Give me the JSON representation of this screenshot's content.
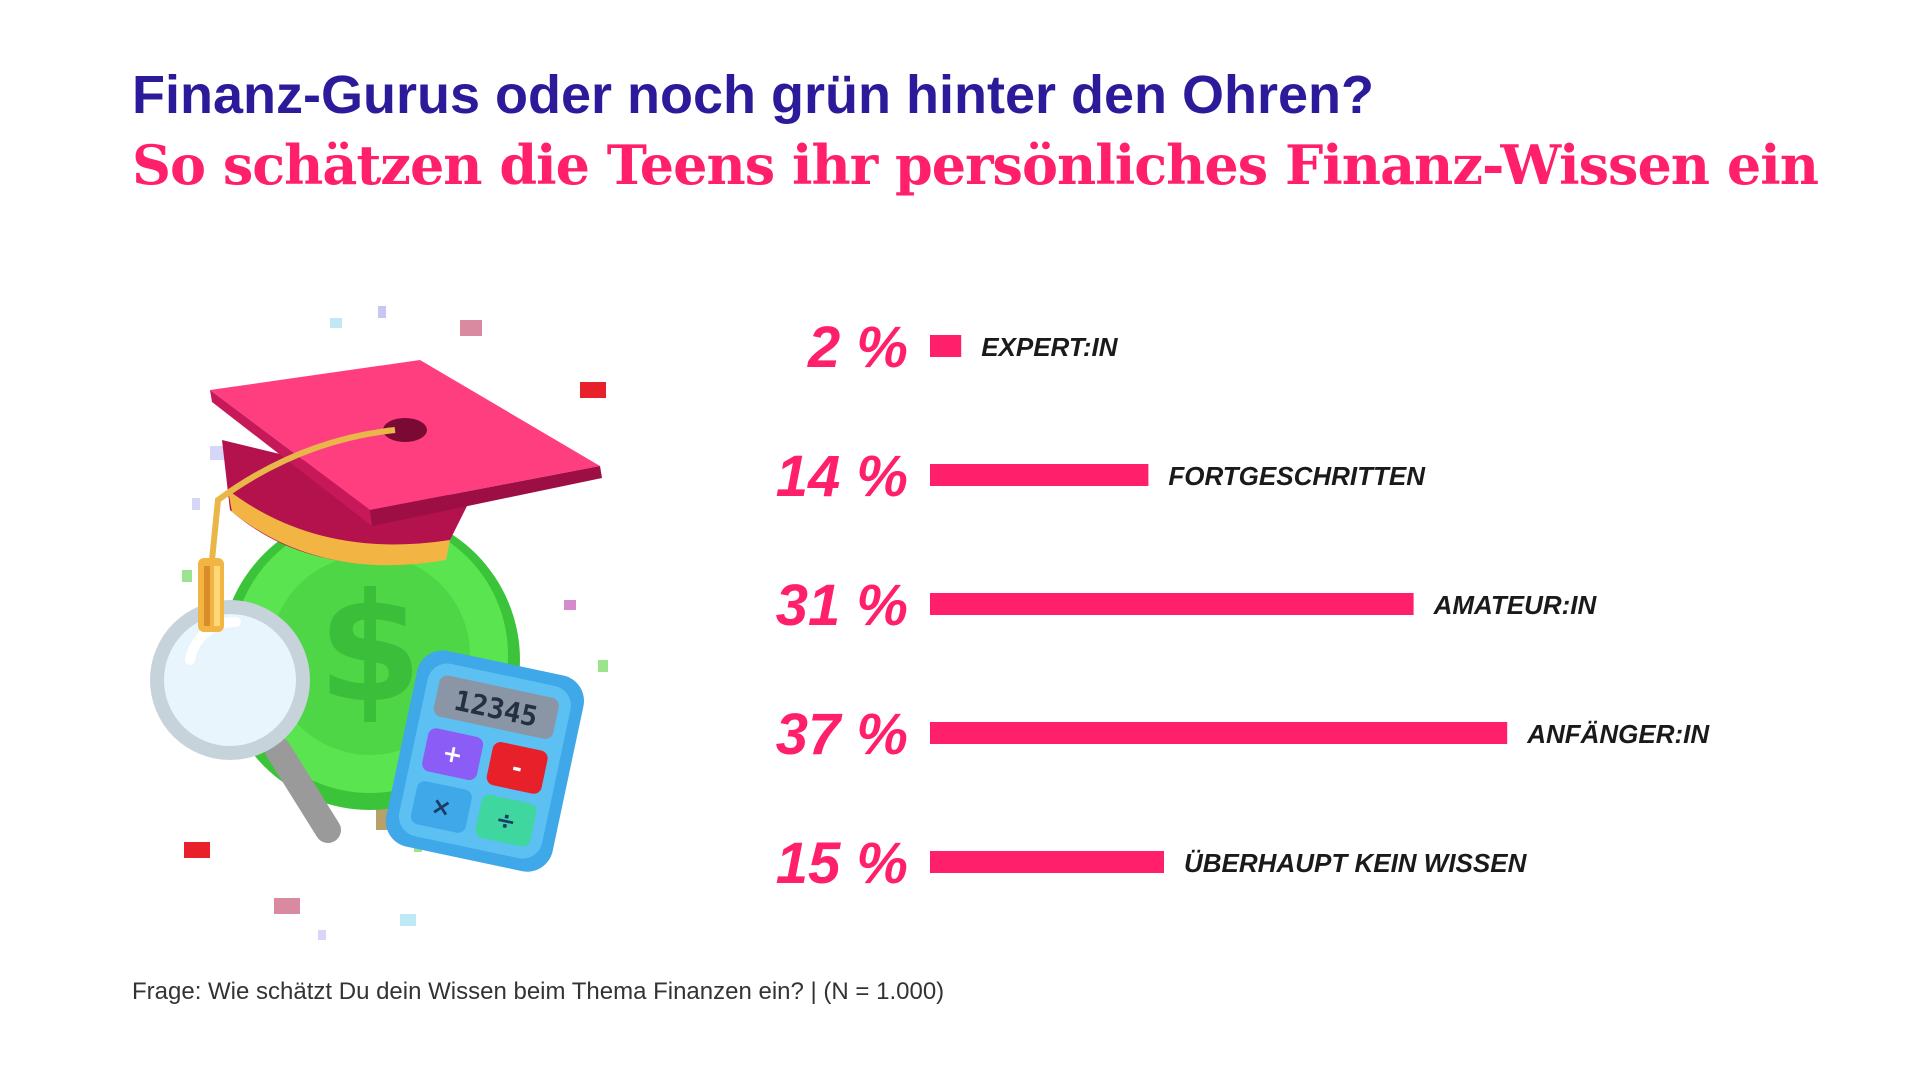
{
  "header": {
    "title": "Finanz-Gurus oder noch grün hinter den Ohren?",
    "subtitle": "So schätzen die Teens ihr persönliches Finanz-Wissen ein"
  },
  "colors": {
    "title": "#2B1B9A",
    "accent": "#FF1F6B",
    "coin": "#4FE04A",
    "cap": "#E8336E",
    "calculator": "#3FA8E8"
  },
  "illustration": {
    "icons": [
      "graduation-cap-icon",
      "dollar-coin-icon",
      "magnifying-glass-icon",
      "calculator-icon"
    ],
    "calculator_display": "12345"
  },
  "chart_data": {
    "type": "bar",
    "orientation": "horizontal",
    "categories": [
      "EXPERT:IN",
      "FORTGESCHRITTEN",
      "AMATEUR:IN",
      "ANFÄNGER:IN",
      "ÜBERHAUPT KEIN WISSEN"
    ],
    "values": [
      2,
      14,
      31,
      37,
      15
    ],
    "value_labels": [
      "2 %",
      "14 %",
      "31 %",
      "37 %",
      "15 %"
    ],
    "unit": "%",
    "bar_color": "#FF1F6B",
    "grid": false,
    "axes_visible": false
  },
  "footnote": "Frage: Wie schätzt Du dein Wissen beim Thema Finanzen ein? | (N = 1.000)"
}
